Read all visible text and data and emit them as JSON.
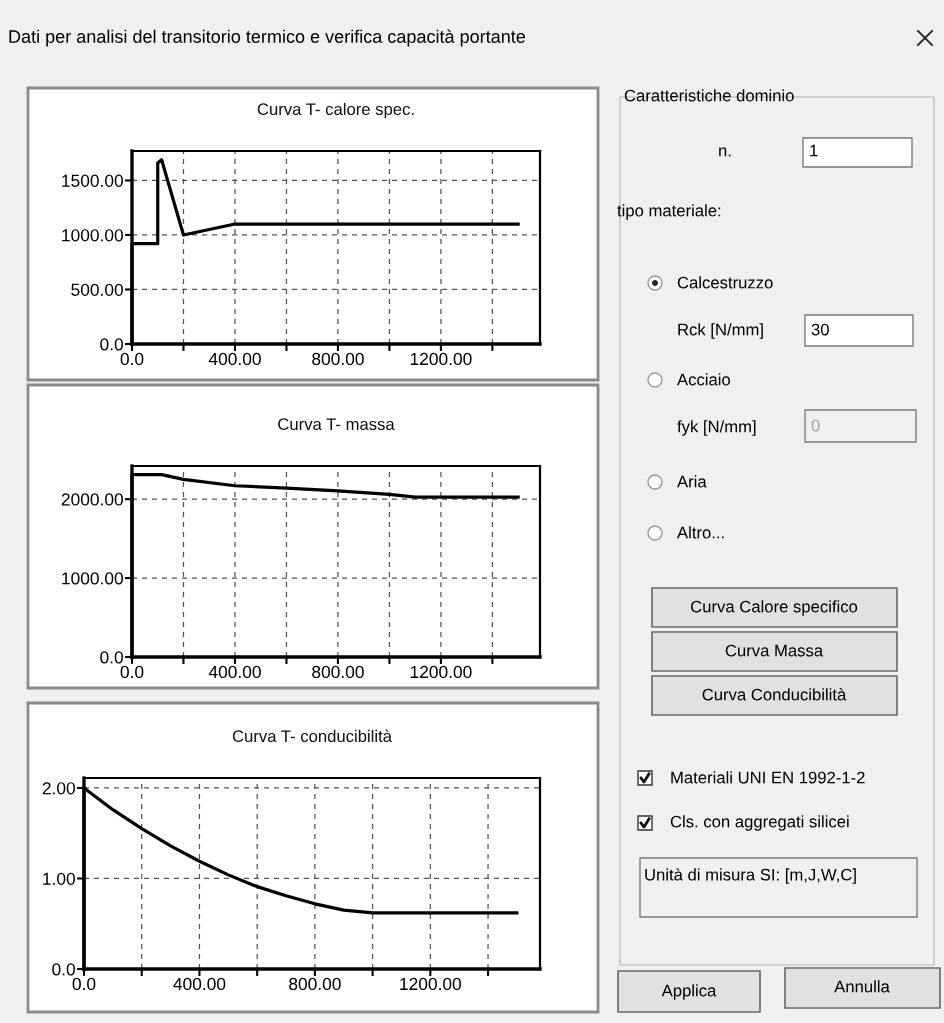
{
  "chart_data": [
    {
      "type": "line",
      "title": "Curva T- calore spec.",
      "grid": true,
      "series": [
        {
          "color": "#000000",
          "x": [
            0,
            0,
            100,
            100,
            115,
            200,
            400,
            1500
          ],
          "values": [
            0,
            920,
            920,
            1660,
            1690,
            1000,
            1100,
            1100
          ]
        }
      ],
      "xlim": [
        0,
        1585
      ],
      "ylim": [
        0,
        1770
      ],
      "xticks": [
        {
          "value": 0,
          "label": "0.0"
        },
        {
          "value": 200,
          "label": null
        },
        {
          "value": 400,
          "label": "400.00"
        },
        {
          "value": 600,
          "label": null
        },
        {
          "value": 800,
          "label": "800.00"
        },
        {
          "value": 1000,
          "label": null
        },
        {
          "value": 1200,
          "label": "1200.00"
        },
        {
          "value": 1400,
          "label": null
        }
      ],
      "yticks": [
        {
          "value": 0,
          "label": "0.0"
        },
        {
          "value": 500,
          "label": "500.00"
        },
        {
          "value": 1000,
          "label": "1000.00"
        },
        {
          "value": 1500,
          "label": "1500.00"
        }
      ]
    },
    {
      "type": "line",
      "title": "Curva T- massa",
      "grid": true,
      "series": [
        {
          "color": "#000000",
          "x": [
            0,
            0,
            115,
            200,
            400,
            600,
            800,
            1000,
            1100,
            1500
          ],
          "values": [
            0,
            2310,
            2310,
            2250,
            2170,
            2140,
            2105,
            2060,
            2025,
            2025
          ]
        }
      ],
      "xlim": [
        0,
        1585
      ],
      "ylim": [
        0,
        2420
      ],
      "xticks": [
        {
          "value": 0,
          "label": "0.0"
        },
        {
          "value": 200,
          "label": null
        },
        {
          "value": 400,
          "label": "400.00"
        },
        {
          "value": 600,
          "label": null
        },
        {
          "value": 800,
          "label": "800.00"
        },
        {
          "value": 1000,
          "label": null
        },
        {
          "value": 1200,
          "label": "1200.00"
        },
        {
          "value": 1400,
          "label": null
        }
      ],
      "yticks": [
        {
          "value": 0,
          "label": "0.0"
        },
        {
          "value": 1000,
          "label": "1000.00"
        },
        {
          "value": 2000,
          "label": "2000.00"
        }
      ]
    },
    {
      "type": "line",
      "title": "Curva T- conducibilità",
      "grid": true,
      "series": [
        {
          "color": "#000000",
          "x": [
            0,
            0,
            100,
            200,
            300,
            400,
            500,
            600,
            700,
            800,
            900,
            1000,
            1500
          ],
          "values": [
            0,
            2.0,
            1.76,
            1.55,
            1.36,
            1.19,
            1.04,
            0.91,
            0.81,
            0.72,
            0.65,
            0.62,
            0.62
          ]
        }
      ],
      "xlim": [
        0,
        1580
      ],
      "ylim": [
        0,
        2.11
      ],
      "xticks": [
        {
          "value": 0,
          "label": "0.0"
        },
        {
          "value": 200,
          "label": null
        },
        {
          "value": 400,
          "label": "400.00"
        },
        {
          "value": 600,
          "label": null
        },
        {
          "value": 800,
          "label": "800.00"
        },
        {
          "value": 1000,
          "label": null
        },
        {
          "value": 1200,
          "label": "1200.00"
        },
        {
          "value": 1400,
          "label": null
        }
      ],
      "yticks": [
        {
          "value": 0,
          "label": "0.0"
        },
        {
          "value": 1,
          "label": "1.00"
        },
        {
          "value": 2,
          "label": "2.00"
        }
      ]
    },
    {
      "type": "other",
      "title": "Dati per analisi del transitorio termico e verifica capacità portante",
      "annotations": [
        "Caratteristiche dominio",
        "n.",
        "1",
        "tipo materiale:",
        "Calcestruzzo",
        "Rck [N/mm]",
        "30",
        "Acciaio",
        "fyk [N/mm]",
        "0",
        "Aria",
        "Altro...",
        "Curva Calore specifico",
        "Curva Massa",
        "Curva Conducibilità",
        "Materiali UNI EN 1992-1-2",
        "Cls. con aggregati silicei",
        "Unità di misura SI: [m,J,W,C]",
        "Applica",
        "Annulla"
      ]
    }
  ]
}
